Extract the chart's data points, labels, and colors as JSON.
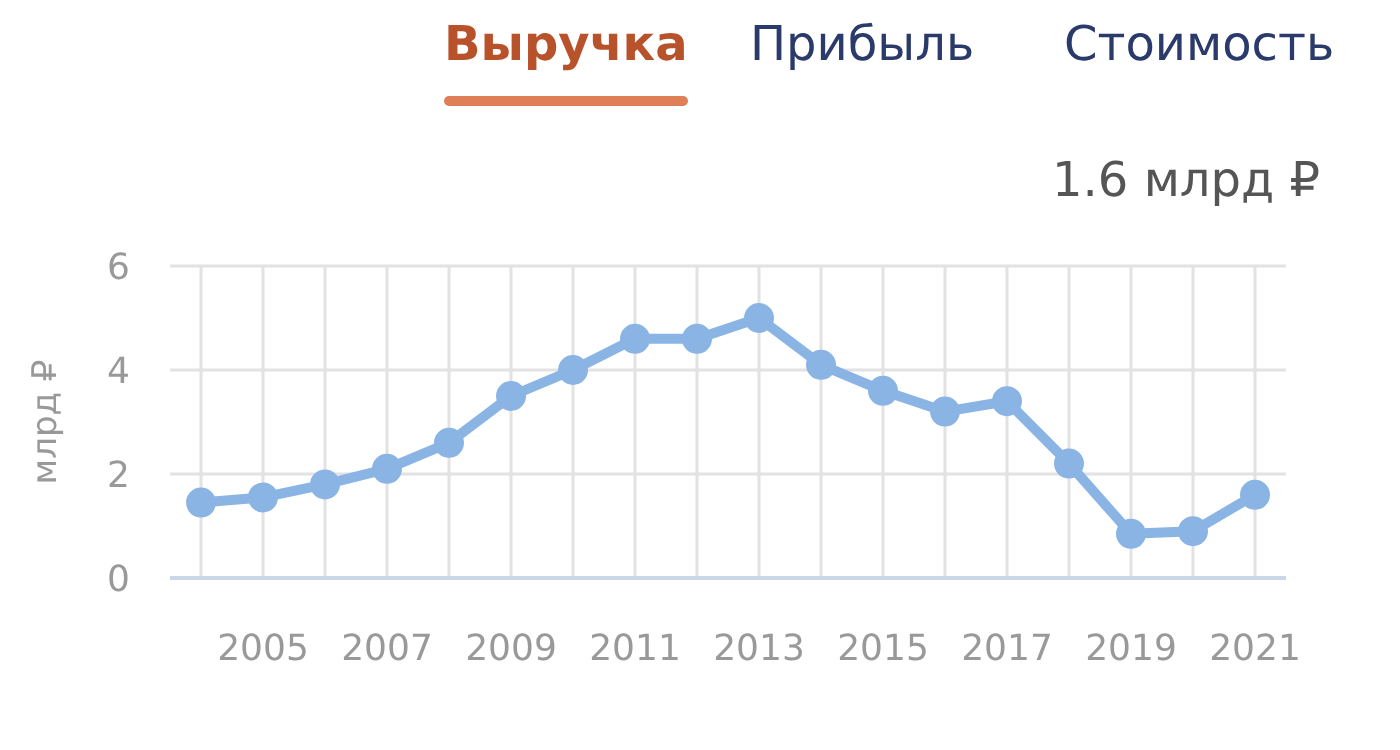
{
  "chart_data": {
    "type": "line",
    "ylabel": "млрд ₽",
    "annotations": [
      "Выручка",
      "Прибыль",
      "Стоимость",
      "1.6 млрд ₽"
    ],
    "x": [
      2004,
      2005,
      2006,
      2007,
      2008,
      2009,
      2010,
      2011,
      2012,
      2013,
      2014,
      2015,
      2016,
      2017,
      2018,
      2019,
      2020,
      2021
    ],
    "series": [
      {
        "color": "#8ab4e4",
        "values": [
          1.45,
          1.55,
          1.8,
          2.1,
          2.6,
          3.5,
          4.0,
          4.6,
          4.6,
          5.0,
          4.1,
          3.6,
          3.2,
          3.4,
          2.2,
          0.85,
          0.9,
          1.6
        ]
      }
    ],
    "xlim": [
      2003.5,
      2021.5
    ],
    "xticks": [
      {
        "value": 2004,
        "label": null
      },
      2005,
      {
        "value": 2006,
        "label": null
      },
      2007,
      {
        "value": 2008,
        "label": null
      },
      2009,
      {
        "value": 2010,
        "label": null
      },
      2011,
      {
        "value": 2012,
        "label": null
      },
      2013,
      {
        "value": 2014,
        "label": null
      },
      2015,
      {
        "value": 2016,
        "label": null
      },
      2017,
      {
        "value": 2018,
        "label": null
      },
      2019,
      {
        "value": 2020,
        "label": null
      },
      2021
    ],
    "ylim": [
      0,
      6
    ],
    "yticks": [
      0,
      2,
      4,
      6
    ],
    "grid": true,
    "marker": "circle",
    "line_style": "solid"
  }
}
